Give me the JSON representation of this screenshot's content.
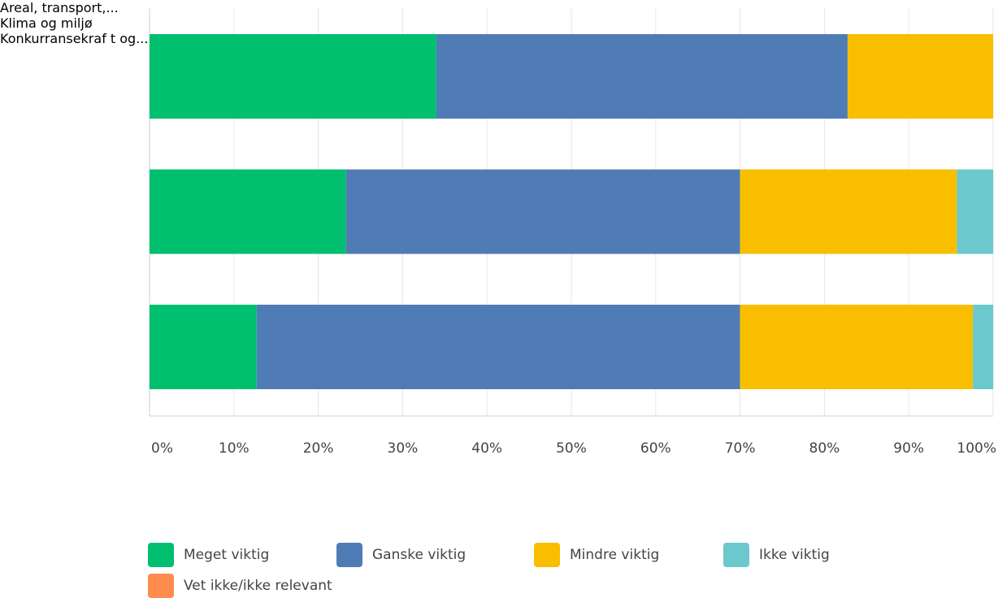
{
  "chart_data": {
    "type": "stacked-bar-horizontal",
    "categories": [
      "Areal,\ntransport,...",
      "Klima og miljø",
      "Konkurransekraf\nt og..."
    ],
    "series": [
      {
        "name": "Meget viktig",
        "color": "#00bf6f",
        "values": [
          34.0,
          23.3,
          12.7
        ]
      },
      {
        "name": "Ganske viktig",
        "color": "#507cb6",
        "values": [
          48.75,
          46.7,
          57.3
        ]
      },
      {
        "name": "Mindre viktig",
        "color": "#f9be00",
        "values": [
          17.25,
          25.7,
          27.6
        ]
      },
      {
        "name": "Ikke viktig",
        "color": "#6bc8cd",
        "values": [
          0,
          4.3,
          2.4
        ]
      },
      {
        "name": "Vet ikke/ikke relevant",
        "color": "#ff8b4f",
        "values": [
          0,
          0,
          0
        ]
      }
    ],
    "xlim": [
      0,
      100
    ],
    "xticks": [
      {
        "value": 0,
        "label": "0%"
      },
      {
        "value": 10,
        "label": "10%"
      },
      {
        "value": 20,
        "label": "20%"
      },
      {
        "value": 30,
        "label": "30%"
      },
      {
        "value": 40,
        "label": "40%"
      },
      {
        "value": 50,
        "label": "50%"
      },
      {
        "value": 60,
        "label": "60%"
      },
      {
        "value": 70,
        "label": "70%"
      },
      {
        "value": 80,
        "label": "80%"
      },
      {
        "value": 90,
        "label": "90%"
      },
      {
        "value": 100,
        "label": "100%"
      }
    ],
    "grid": true
  }
}
